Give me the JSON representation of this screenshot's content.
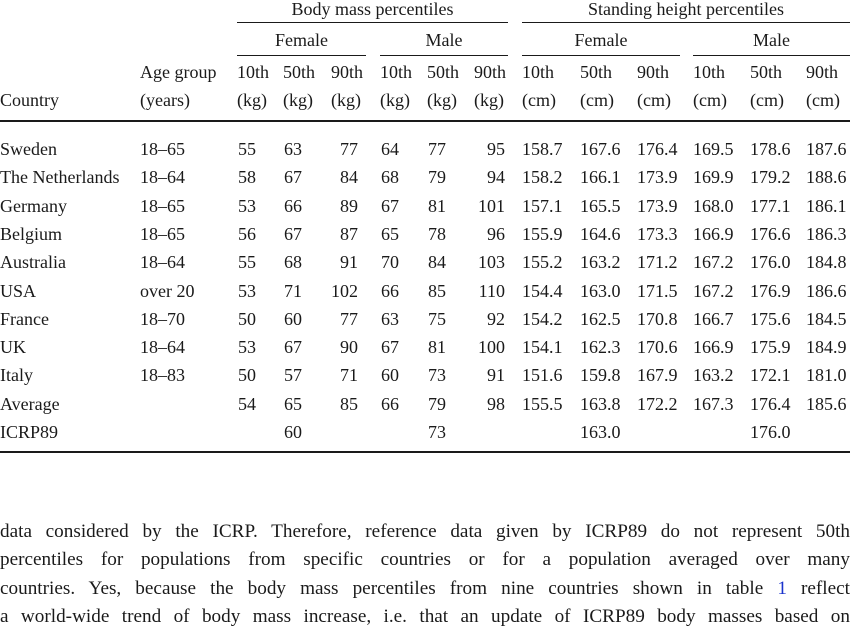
{
  "table": {
    "group_headers": {
      "body_mass": "Body mass percentiles",
      "standing_height": "Standing height percentiles"
    },
    "sex_headers": {
      "body_mass_female": "Female",
      "body_mass_male": "Male",
      "height_female": "Female",
      "height_male": "Male"
    },
    "column_headers": {
      "country": "Country",
      "age_group_line1": "Age group",
      "age_group_line2": "(years)",
      "percentiles": [
        "10th",
        "50th",
        "90th",
        "10th",
        "50th",
        "90th",
        "10th",
        "50th",
        "90th",
        "10th",
        "50th",
        "90th"
      ],
      "units": [
        "(kg)",
        "(kg)",
        "(kg)",
        "(kg)",
        "(kg)",
        "(kg)",
        "(cm)",
        "(cm)",
        "(cm)",
        "(cm)",
        "(cm)",
        "(cm)"
      ]
    },
    "rows": [
      {
        "country": "Sweden",
        "age": "18–65",
        "values": [
          "55",
          "63",
          "77",
          "64",
          "77",
          "95",
          "158.7",
          "167.6",
          "176.4",
          "169.5",
          "178.6",
          "187.6"
        ]
      },
      {
        "country": "The Netherlands",
        "age": "18–64",
        "values": [
          "58",
          "67",
          "84",
          "68",
          "79",
          "94",
          "158.2",
          "166.1",
          "173.9",
          "169.9",
          "179.2",
          "188.6"
        ]
      },
      {
        "country": "Germany",
        "age": "18–65",
        "values": [
          "53",
          "66",
          "89",
          "67",
          "81",
          "101",
          "157.1",
          "165.5",
          "173.9",
          "168.0",
          "177.1",
          "186.1"
        ]
      },
      {
        "country": "Belgium",
        "age": "18–65",
        "values": [
          "56",
          "67",
          "87",
          "65",
          "78",
          "96",
          "155.9",
          "164.6",
          "173.3",
          "166.9",
          "176.6",
          "186.3"
        ]
      },
      {
        "country": "Australia",
        "age": "18–64",
        "values": [
          "55",
          "68",
          "91",
          "70",
          "84",
          "103",
          "155.2",
          "163.2",
          "171.2",
          "167.2",
          "176.0",
          "184.8"
        ]
      },
      {
        "country": "USA",
        "age": "over 20",
        "values": [
          "53",
          "71",
          "102",
          "66",
          "85",
          "110",
          "154.4",
          "163.0",
          "171.5",
          "167.2",
          "176.9",
          "186.6"
        ]
      },
      {
        "country": "France",
        "age": "18–70",
        "values": [
          "50",
          "60",
          "77",
          "63",
          "75",
          "92",
          "154.2",
          "162.5",
          "170.8",
          "166.7",
          "175.6",
          "184.5"
        ]
      },
      {
        "country": "UK",
        "age": "18–64",
        "values": [
          "53",
          "67",
          "90",
          "67",
          "81",
          "100",
          "154.1",
          "162.3",
          "170.6",
          "166.9",
          "175.9",
          "184.9"
        ]
      },
      {
        "country": "Italy",
        "age": "18–83",
        "values": [
          "50",
          "57",
          "71",
          "60",
          "73",
          "91",
          "151.6",
          "159.8",
          "167.9",
          "163.2",
          "172.1",
          "181.0"
        ]
      },
      {
        "country": "Average",
        "age": "",
        "values": [
          "54",
          "65",
          "85",
          "66",
          "79",
          "98",
          "155.5",
          "163.8",
          "172.2",
          "167.3",
          "176.4",
          "185.6"
        ]
      },
      {
        "country": "ICRP89",
        "age": "",
        "values": [
          "",
          "60",
          "",
          "",
          "73",
          "",
          "",
          "163.0",
          "",
          "",
          "176.0",
          ""
        ]
      }
    ]
  },
  "paragraph": {
    "line1": "data considered by the ICRP. Therefore, reference data given by ICRP89 do not represent 50th",
    "line2": "percentiles for populations from specific countries or for a population averaged over many",
    "line3_before": "countries.  Yes, because the body mass percentiles from nine countries shown in table ",
    "line3_link": "1",
    "line3_after": " reflect",
    "line4": "a world-wide trend of body mass increase, i.e. that an update of ICRP89 body masses based on"
  },
  "colors": {
    "link": "#1a33cc",
    "text": "#1a1a1a"
  }
}
